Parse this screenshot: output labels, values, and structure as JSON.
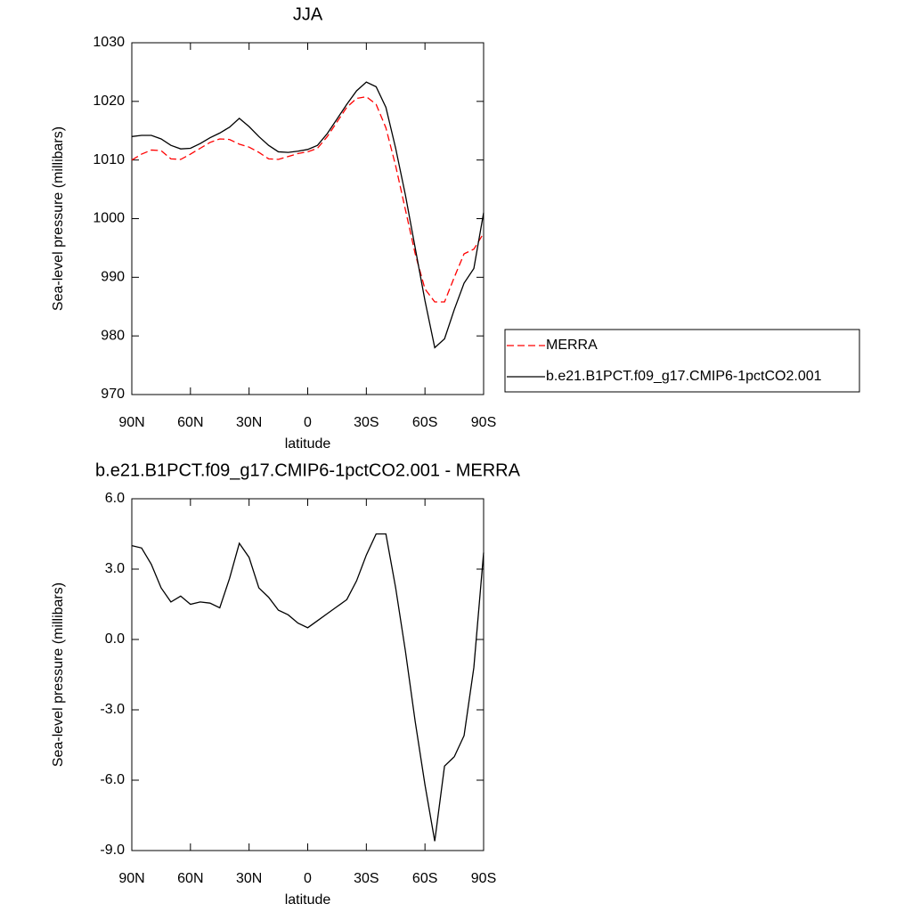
{
  "chart_data": [
    {
      "type": "line",
      "title": "JJA",
      "x_label": "latitude",
      "y_label": "Sea-level pressure (millibars)",
      "x": [
        90,
        85,
        80,
        75,
        70,
        65,
        60,
        55,
        50,
        45,
        40,
        35,
        30,
        25,
        20,
        15,
        10,
        5,
        0,
        -5,
        -10,
        -15,
        -20,
        -25,
        -30,
        -35,
        -40,
        -45,
        -50,
        -55,
        -60,
        -65,
        -70,
        -75,
        -80,
        -85,
        -90
      ],
      "series": [
        {
          "name": "MERRA",
          "color": "#ff0000",
          "line_style": "dashed",
          "values": [
            1010,
            1011,
            1011.7,
            1011.6,
            1010.2,
            1010.1,
            1011,
            1012,
            1013,
            1013.6,
            1013.5,
            1012.7,
            1012.2,
            1011.3,
            1010.2,
            1010.1,
            1010.6,
            1011.1,
            1011.4,
            1012,
            1014,
            1016.5,
            1019,
            1020.5,
            1020.8,
            1019.5,
            1015.5,
            1009,
            1001.5,
            994,
            988,
            985.8,
            985.8,
            990,
            994,
            994.8,
            997.5
          ]
        },
        {
          "name": "b.e21.B1PCT.f09_g17.CMIP6-1pctCO2.001",
          "color": "#000000",
          "line_style": "solid",
          "values": [
            1014,
            1014.2,
            1014.2,
            1013.6,
            1012.5,
            1011.9,
            1012,
            1012.8,
            1013.8,
            1014.6,
            1015.6,
            1017.1,
            1015.7,
            1014,
            1012.5,
            1011.4,
            1011.3,
            1011.5,
            1011.8,
            1012.5,
            1014.5,
            1017,
            1019.5,
            1021.8,
            1023.3,
            1022.5,
            1019,
            1012,
            1004,
            995,
            986,
            978,
            979.5,
            984.5,
            989,
            991.5,
            1001
          ]
        }
      ],
      "xlim": [
        90,
        -90
      ],
      "xticks": [
        {
          "value": 90,
          "label": "90N"
        },
        {
          "value": 60,
          "label": "60N"
        },
        {
          "value": 30,
          "label": "30N"
        },
        0,
        {
          "value": -30,
          "label": "30S"
        },
        {
          "value": -60,
          "label": "60S"
        },
        {
          "value": -90,
          "label": "90S"
        }
      ],
      "ylim": [
        970,
        1030
      ],
      "yticks": [
        970,
        980,
        990,
        1000,
        1010,
        1020,
        1030
      ],
      "legend": "right"
    },
    {
      "type": "line",
      "title": "b.e21.B1PCT.f09_g17.CMIP6-1pctCO2.001 - MERRA",
      "x_label": "latitude",
      "y_label": "Sea-level pressure (millibars)",
      "x": [
        90,
        85,
        80,
        75,
        70,
        65,
        60,
        55,
        50,
        45,
        40,
        35,
        30,
        25,
        20,
        15,
        10,
        5,
        0,
        -5,
        -10,
        -15,
        -20,
        -25,
        -30,
        -35,
        -40,
        -45,
        -50,
        -55,
        -60,
        -65,
        -70,
        -75,
        -80,
        -85,
        -90
      ],
      "series": [
        {
          "color": "#000000",
          "line_style": "solid",
          "values": [
            4.0,
            3.9,
            3.2,
            2.2,
            1.6,
            1.85,
            1.5,
            1.6,
            1.55,
            1.35,
            2.6,
            4.1,
            3.5,
            2.2,
            1.8,
            1.25,
            1.05,
            0.7,
            0.5,
            0.8,
            1.1,
            1.4,
            1.7,
            2.5,
            3.6,
            4.5,
            4.5,
            2.2,
            -0.5,
            -3.5,
            -6.2,
            -8.6,
            -5.4,
            -5.0,
            -4.1,
            -1.2,
            3.7
          ]
        }
      ],
      "xlim": [
        90,
        -90
      ],
      "xticks": [
        {
          "value": 90,
          "label": "90N"
        },
        {
          "value": 60,
          "label": "60N"
        },
        {
          "value": 30,
          "label": "30N"
        },
        0,
        {
          "value": -30,
          "label": "30S"
        },
        {
          "value": -60,
          "label": "60S"
        },
        {
          "value": -90,
          "label": "90S"
        }
      ],
      "ylim": [
        -9,
        6
      ],
      "yticks": [
        {
          "value": -9,
          "label": "-9.0"
        },
        {
          "value": -6,
          "label": "-6.0"
        },
        {
          "value": -3,
          "label": "-3.0"
        },
        {
          "value": 0,
          "label": "0.0"
        },
        {
          "value": 3,
          "label": "3.0"
        },
        {
          "value": 6,
          "label": "6.0"
        }
      ]
    }
  ]
}
